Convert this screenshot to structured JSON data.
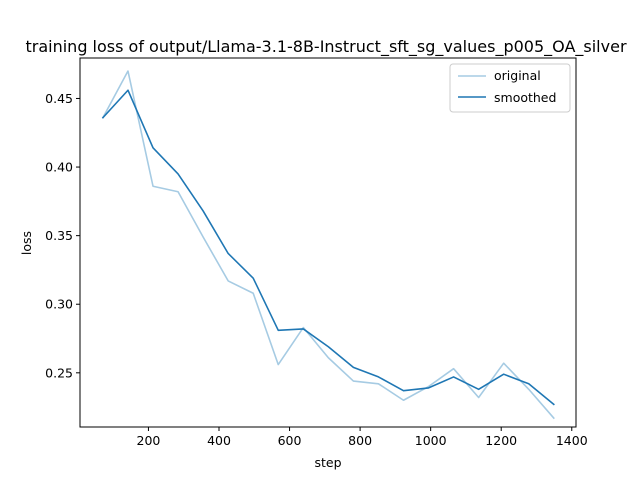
{
  "chart_data": {
    "type": "line",
    "title": "training loss of output/Llama-3.1-8B-Instruct_sft_sg_values_p005_OA_silver",
    "xlabel": "step",
    "ylabel": "loss",
    "xlim": [
      6,
      1412
    ],
    "ylim": [
      0.2105,
      0.4795
    ],
    "xticks": [
      200,
      400,
      600,
      800,
      1000,
      1200,
      1400
    ],
    "yticks": [
      0.25,
      0.3,
      0.35,
      0.4,
      0.45
    ],
    "xtick_labels": [
      "200",
      "400",
      "600",
      "800",
      "1000",
      "1200",
      "1400"
    ],
    "ytick_labels": [
      "0.25",
      "0.30",
      "0.35",
      "0.40",
      "0.45"
    ],
    "legend_position": "top-right",
    "grid": false,
    "series": [
      {
        "name": "original",
        "color": "#a6cbe3",
        "x": [
          71,
          142,
          213,
          284,
          355,
          426,
          497,
          568,
          639,
          710,
          781,
          852,
          923,
          994,
          1065,
          1136,
          1207,
          1278,
          1349
        ],
        "y": [
          0.436,
          0.47,
          0.386,
          0.382,
          0.349,
          0.317,
          0.308,
          0.256,
          0.283,
          0.261,
          0.244,
          0.242,
          0.23,
          0.24,
          0.253,
          0.232,
          0.257,
          0.238,
          0.217
        ]
      },
      {
        "name": "smoothed",
        "color": "#1f77b4",
        "x": [
          71,
          142,
          213,
          284,
          355,
          426,
          497,
          568,
          639,
          710,
          781,
          852,
          923,
          994,
          1065,
          1136,
          1207,
          1278,
          1349
        ],
        "y": [
          0.436,
          0.456,
          0.414,
          0.395,
          0.368,
          0.337,
          0.319,
          0.281,
          0.282,
          0.269,
          0.254,
          0.247,
          0.237,
          0.239,
          0.247,
          0.238,
          0.249,
          0.242,
          0.227
        ]
      }
    ]
  }
}
